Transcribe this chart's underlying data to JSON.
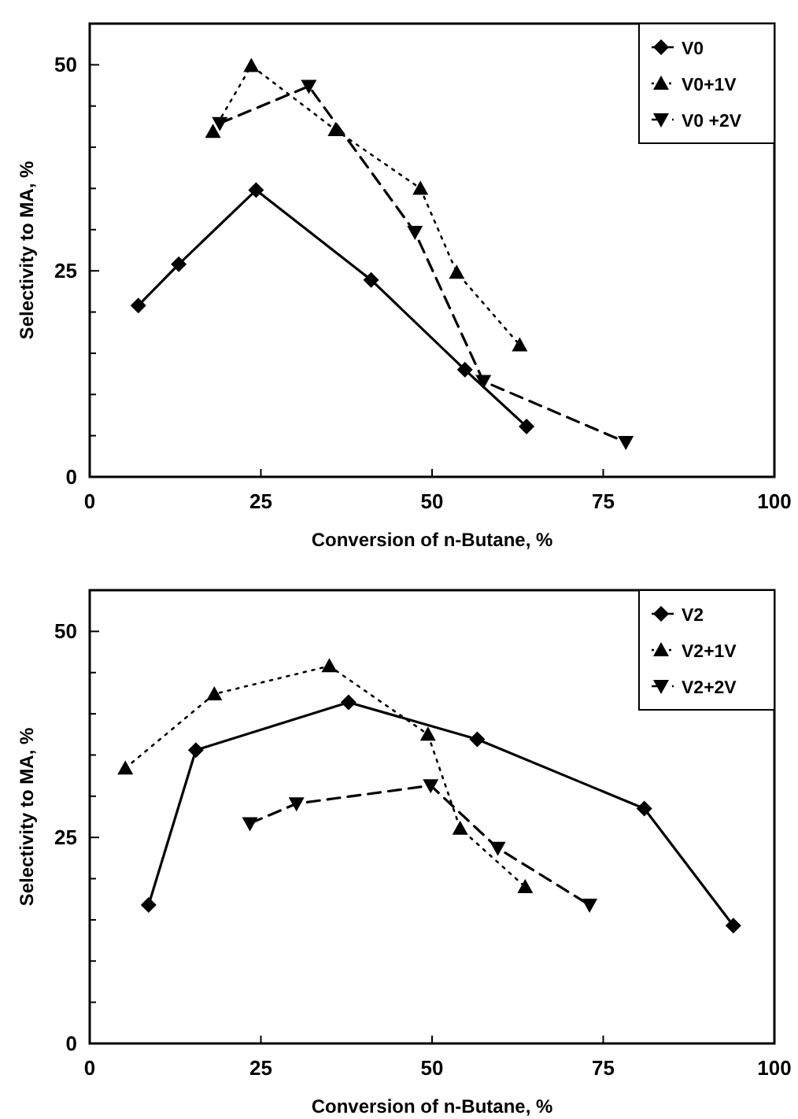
{
  "chart_data": [
    {
      "type": "line",
      "xlabel": "Conversion of n-Butane, %",
      "ylabel": "Selectivity to MA, %",
      "xlim": [
        0,
        100
      ],
      "ylim": [
        0,
        55
      ],
      "xticks": [
        0,
        25,
        50,
        75,
        100
      ],
      "yticks": [
        0,
        {
          "value": 5,
          "label": null
        },
        {
          "value": 10,
          "label": null
        },
        {
          "value": 15,
          "label": null
        },
        {
          "value": 20,
          "label": null
        },
        25,
        {
          "value": 30,
          "label": null
        },
        {
          "value": 35,
          "label": null
        },
        {
          "value": 40,
          "label": null
        },
        {
          "value": 45,
          "label": null
        },
        50
      ],
      "legend": "top right",
      "grid": false,
      "series": [
        {
          "name": "V0",
          "color": "#000000",
          "marker": "diamond",
          "line_style": "solid",
          "x": [
            7.1,
            13.0,
            24.3,
            41.1,
            54.8,
            63.8
          ],
          "values": [
            20.8,
            25.8,
            34.8,
            23.9,
            13.0,
            6.1
          ]
        },
        {
          "name": "V0+1V",
          "color": "#000000",
          "marker": "triangle",
          "line_style": "dotted",
          "x": [
            18.0,
            23.6,
            35.9,
            48.3,
            53.6,
            62.8
          ],
          "values": [
            41.9,
            49.9,
            42.1,
            35.0,
            24.8,
            16.0
          ]
        },
        {
          "name": "V0 +2V",
          "color": "#000000",
          "marker": "triangle-down",
          "line_style": "dashed",
          "x": [
            19.0,
            32.0,
            47.5,
            57.5,
            78.3
          ],
          "values": [
            42.9,
            47.4,
            29.7,
            11.6,
            4.2
          ]
        }
      ]
    },
    {
      "type": "line",
      "xlabel": "Conversion of n-Butane, %",
      "ylabel": "Selectivity to MA, %",
      "xlim": [
        0,
        100
      ],
      "ylim": [
        0,
        55
      ],
      "xticks": [
        0,
        25,
        50,
        75,
        100
      ],
      "yticks": [
        0,
        {
          "value": 5,
          "label": null
        },
        {
          "value": 10,
          "label": null
        },
        {
          "value": 15,
          "label": null
        },
        {
          "value": 20,
          "label": null
        },
        25,
        {
          "value": 30,
          "label": null
        },
        {
          "value": 35,
          "label": null
        },
        {
          "value": 40,
          "label": null
        },
        {
          "value": 45,
          "label": null
        },
        50
      ],
      "legend": "top right",
      "grid": false,
      "series": [
        {
          "name": "V2",
          "color": "#000000",
          "marker": "diamond",
          "line_style": "solid",
          "x": [
            8.6,
            15.5,
            37.8,
            56.6,
            81.0,
            94.0
          ],
          "values": [
            16.8,
            35.6,
            41.4,
            36.9,
            28.5,
            14.3
          ]
        },
        {
          "name": "V2+1V",
          "color": "#000000",
          "marker": "triangle",
          "line_style": "dotted",
          "x": [
            5.2,
            18.2,
            35.0,
            49.4,
            54.1,
            63.6
          ],
          "values": [
            33.4,
            42.4,
            45.8,
            37.5,
            26.1,
            19.0
          ]
        },
        {
          "name": "V2+2V",
          "color": "#000000",
          "marker": "triangle-down",
          "line_style": "dashed",
          "x": [
            23.4,
            30.2,
            49.8,
            59.6,
            73.0
          ],
          "values": [
            26.7,
            29.1,
            31.3,
            23.7,
            16.8
          ]
        }
      ]
    }
  ]
}
